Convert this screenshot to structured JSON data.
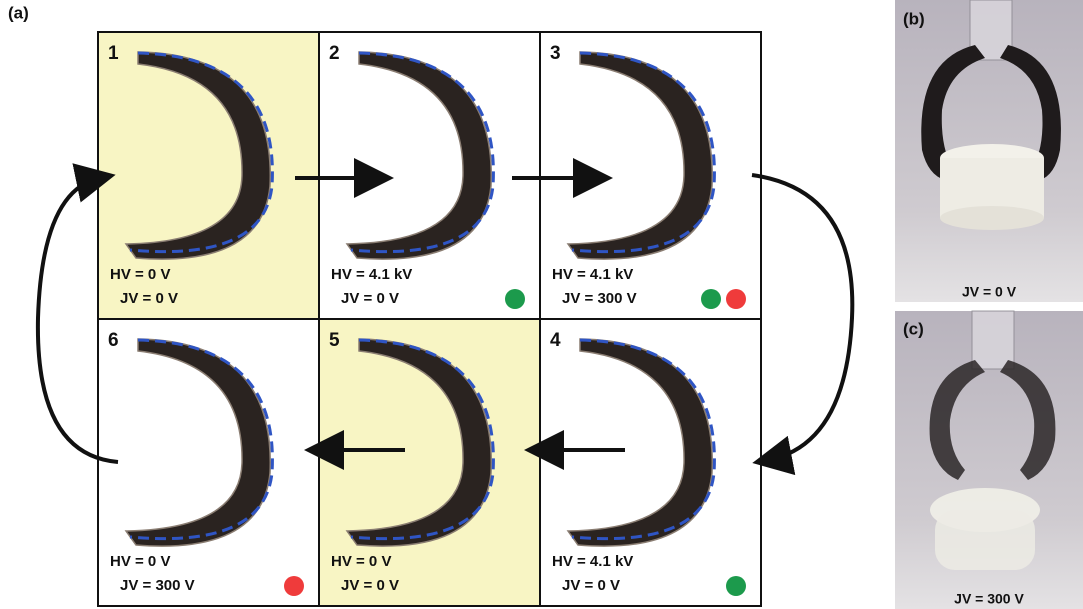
{
  "figure": {
    "label_a": "(a)",
    "label_b": "(b)",
    "label_c": "(c)",
    "panels": [
      {
        "number": "1",
        "hv": "HV = 0 V",
        "jv": "JV = 0 V",
        "background": "#f8f5c4",
        "indicators": []
      },
      {
        "number": "2",
        "hv": "HV = 4.1 kV",
        "jv": "JV = 0 V",
        "background": "#ffffff",
        "indicators": [
          "#1c9a4c"
        ]
      },
      {
        "number": "3",
        "hv": "HV = 4.1 kV",
        "jv": "JV = 300 V",
        "background": "#ffffff",
        "indicators": [
          "#1c9a4c",
          "#ef3b3b"
        ]
      },
      {
        "number": "4",
        "hv": "HV = 4.1 kV",
        "jv": "JV = 0 V",
        "background": "#ffffff",
        "indicators": [
          "#1c9a4c"
        ]
      },
      {
        "number": "5",
        "hv": "HV = 0 V",
        "jv": "JV = 0 V",
        "background": "#f8f5c4",
        "indicators": []
      },
      {
        "number": "6",
        "hv": "HV = 0 V",
        "jv": "JV = 300 V",
        "background": "#ffffff",
        "indicators": [
          "#ef3b3b"
        ]
      }
    ],
    "photos": [
      {
        "label": "JV = 0 V",
        "color": "#2d52c8"
      },
      {
        "label": "JV = 300 V",
        "color": "#d93030"
      }
    ]
  }
}
